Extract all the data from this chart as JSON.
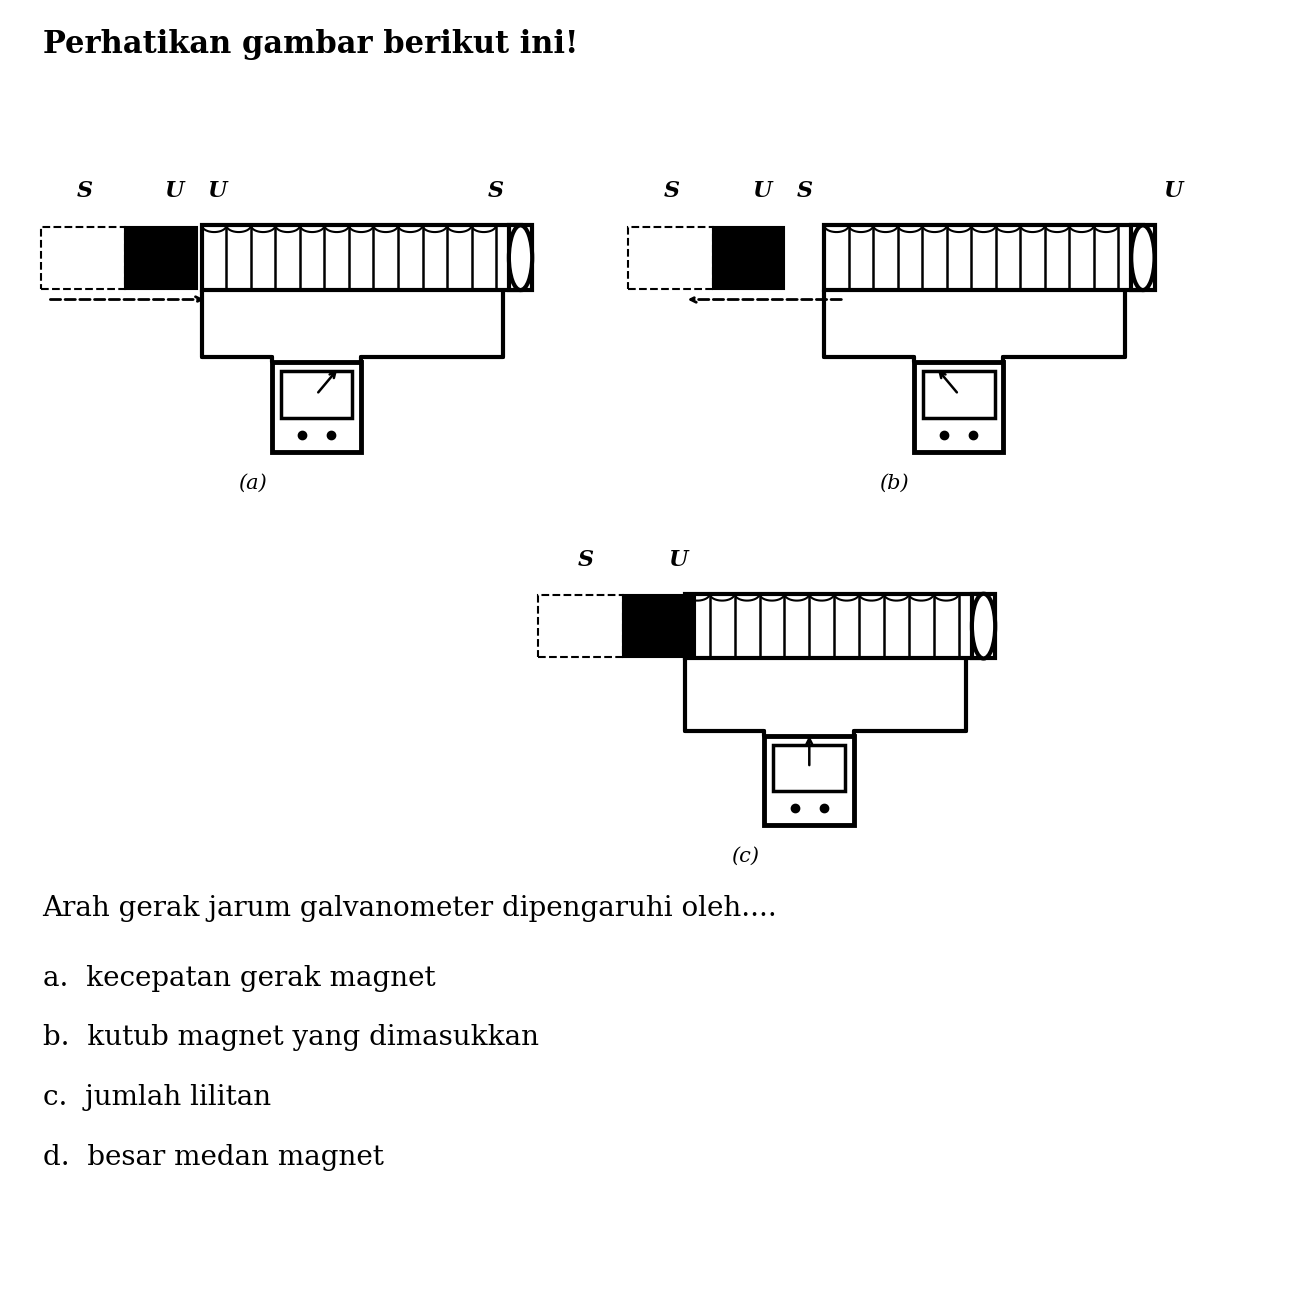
{
  "title": "Perhatikan gambar berikut ini!",
  "question": "Arah gerak jarum galvanometer dipengaruhi oleh....",
  "options": [
    "a.  kecepatan gerak magnet",
    "b.  kutub magnet yang dimasukkan",
    "c.  jumlah lilitan",
    "d.  besar medan magnet"
  ],
  "bg_color": "#ffffff",
  "text_color": "#000000",
  "lw": 2.5,
  "font_size_title": 22,
  "font_size_label": 16,
  "font_size_galv_label": 15,
  "font_size_question": 20
}
